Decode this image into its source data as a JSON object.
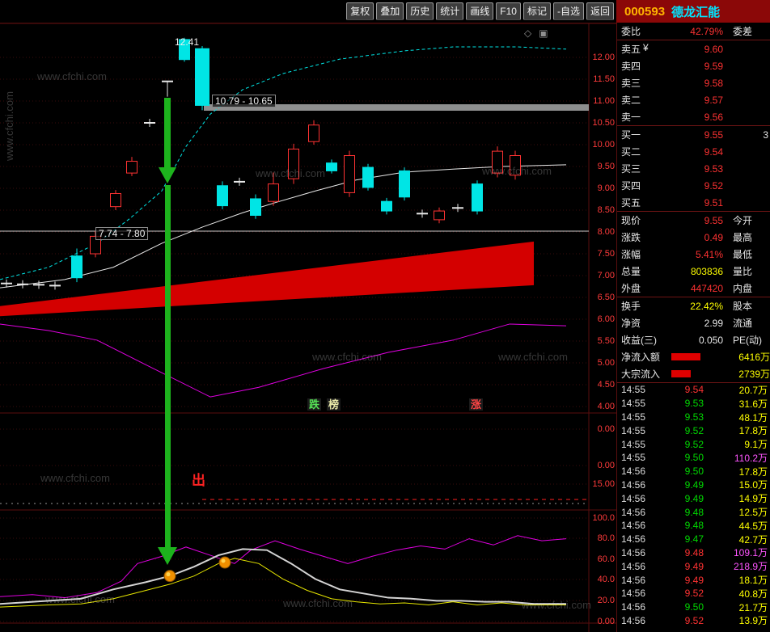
{
  "toolbar": {
    "buttons": [
      "复权",
      "叠加",
      "历史",
      "统计",
      "画线",
      "F10",
      "标记",
      "-自选",
      "返回"
    ]
  },
  "stock": {
    "code": "000593",
    "name": "德龙汇能"
  },
  "watermark": "www.cfchi.com",
  "chart": {
    "icons": [
      "◇",
      "▣"
    ],
    "y_axis_main": [
      "12.00",
      "11.50",
      "11.00",
      "10.50",
      "10.00",
      "9.50",
      "9.00",
      "8.50",
      "8.00",
      "7.50",
      "7.00",
      "6.50",
      "6.00",
      "5.50",
      "5.00",
      "4.50",
      "4.00"
    ],
    "y_axis_mid": [
      "0.00",
      "0.00",
      "15.00"
    ],
    "y_axis_bottom": [
      "100.0",
      "80.0",
      "60.0",
      "40.0",
      "20.0",
      "0.00"
    ],
    "labels": {
      "high_price": "12.41",
      "gap_range": "10.79 - 10.65",
      "low_range": "7.74 - 7.80",
      "exit_mark": "出",
      "tag_fall": "跌",
      "tag_board": "榜",
      "tag_rise": "涨"
    }
  },
  "chart_data": {
    "type": "candlestick",
    "main_ylim": [
      4.0,
      12.5
    ],
    "mid_axis_values": [
      0.0,
      0.0,
      15.0
    ],
    "bottom_ylim": [
      0,
      100
    ],
    "candles": [
      {
        "x": 8,
        "type": "doji",
        "p": 6.82
      },
      {
        "x": 28,
        "type": "doji",
        "p": 6.8
      },
      {
        "x": 48,
        "type": "doji",
        "p": 6.79
      },
      {
        "x": 68,
        "type": "doji",
        "p": 6.77
      },
      {
        "x": 95,
        "type": "candle",
        "dir": "down",
        "o": 7.45,
        "c": 6.95,
        "h": 7.62,
        "l": 6.85
      },
      {
        "x": 118,
        "type": "candle",
        "dir": "up",
        "o": 7.5,
        "c": 7.9,
        "h": 8.02,
        "l": 7.42
      },
      {
        "x": 143,
        "type": "candle",
        "dir": "up",
        "o": 8.58,
        "c": 8.88,
        "h": 8.96,
        "l": 8.5
      },
      {
        "x": 163,
        "type": "candle",
        "dir": "up",
        "o": 9.35,
        "c": 9.62,
        "h": 9.72,
        "l": 9.28
      },
      {
        "x": 185,
        "type": "doji",
        "p": 10.5
      },
      {
        "x": 207,
        "type": "doji",
        "p": 11.45,
        "tail": 11.1
      },
      {
        "x": 228,
        "type": "candle",
        "dir": "down",
        "o": 12.41,
        "c": 11.95,
        "h": 12.45,
        "l": 11.9
      },
      {
        "x": 250,
        "type": "candle",
        "dir": "down",
        "o": 12.2,
        "c": 10.9,
        "h": 12.26,
        "l": 10.79,
        "w": 17
      },
      {
        "x": 275,
        "type": "candle",
        "dir": "down",
        "o": 9.06,
        "c": 8.6,
        "h": 9.16,
        "l": 8.52
      },
      {
        "x": 296,
        "type": "doji",
        "p": 9.15
      },
      {
        "x": 316,
        "type": "candle",
        "dir": "down",
        "o": 8.76,
        "c": 8.38,
        "h": 8.86,
        "l": 8.3
      },
      {
        "x": 338,
        "type": "candle",
        "dir": "up",
        "o": 8.7,
        "c": 9.1,
        "h": 9.36,
        "l": 8.6
      },
      {
        "x": 363,
        "type": "candle",
        "dir": "up",
        "o": 9.22,
        "c": 9.9,
        "h": 10.02,
        "l": 9.1
      },
      {
        "x": 388,
        "type": "candle",
        "dir": "up",
        "o": 10.07,
        "c": 10.45,
        "h": 10.56,
        "l": 10.0
      },
      {
        "x": 410,
        "type": "candle",
        "dir": "down",
        "o": 9.58,
        "c": 9.4,
        "h": 9.66,
        "l": 9.34
      },
      {
        "x": 432,
        "type": "candle",
        "dir": "up",
        "o": 8.9,
        "c": 9.75,
        "h": 9.86,
        "l": 8.8
      },
      {
        "x": 455,
        "type": "candle",
        "dir": "down",
        "o": 9.48,
        "c": 9.02,
        "h": 9.56,
        "l": 8.95
      },
      {
        "x": 478,
        "type": "candle",
        "dir": "down",
        "o": 8.7,
        "c": 8.48,
        "h": 8.78,
        "l": 8.4
      },
      {
        "x": 500,
        "type": "candle",
        "dir": "down",
        "o": 9.4,
        "c": 8.8,
        "h": 9.48,
        "l": 8.72
      },
      {
        "x": 522,
        "type": "doji",
        "p": 8.42
      },
      {
        "x": 543,
        "type": "candle",
        "dir": "up",
        "o": 8.28,
        "c": 8.48,
        "h": 8.56,
        "l": 8.2
      },
      {
        "x": 566,
        "type": "doji",
        "p": 8.55
      },
      {
        "x": 590,
        "type": "candle",
        "dir": "down",
        "o": 9.1,
        "c": 8.48,
        "h": 9.18,
        "l": 8.4
      },
      {
        "x": 615,
        "type": "candle",
        "dir": "up",
        "o": 9.35,
        "c": 9.85,
        "h": 9.96,
        "l": 9.25
      },
      {
        "x": 637,
        "type": "candle",
        "dir": "up",
        "o": 9.3,
        "c": 9.75,
        "h": 9.86,
        "l": 9.2
      }
    ],
    "series": {
      "ma_fast_dashed_cyan": [
        [
          0,
          6.91
        ],
        [
          60,
          7.19
        ],
        [
          120,
          7.74
        ],
        [
          160,
          8.3
        ],
        [
          200,
          8.94
        ],
        [
          230,
          9.96
        ],
        [
          260,
          10.7
        ],
        [
          300,
          11.26
        ],
        [
          350,
          11.63
        ],
        [
          420,
          11.96
        ],
        [
          500,
          12.15
        ],
        [
          560,
          12.24
        ],
        [
          640,
          12.24
        ],
        [
          700,
          12.19
        ]
      ],
      "ma_slow_white": [
        [
          0,
          6.72
        ],
        [
          80,
          6.91
        ],
        [
          140,
          7.19
        ],
        [
          200,
          7.74
        ],
        [
          250,
          8.11
        ],
        [
          300,
          8.44
        ],
        [
          340,
          8.67
        ],
        [
          390,
          8.94
        ],
        [
          440,
          9.19
        ],
        [
          500,
          9.37
        ],
        [
          560,
          9.44
        ],
        [
          620,
          9.5
        ],
        [
          700,
          9.54
        ]
      ],
      "wedge_red": [
        [
          0,
          6.3
        ],
        [
          660,
          7.78
        ],
        [
          660,
          6.78
        ],
        [
          0,
          6.07
        ]
      ],
      "mid_magenta": [
        [
          0,
          5.89
        ],
        [
          60,
          5.74
        ],
        [
          120,
          5.52
        ],
        [
          180,
          4.96
        ],
        [
          260,
          4.22
        ],
        [
          320,
          4.44
        ],
        [
          400,
          4.87
        ],
        [
          480,
          5.24
        ],
        [
          560,
          5.52
        ],
        [
          630,
          5.89
        ],
        [
          700,
          5.85
        ]
      ],
      "bottom_magenta": [
        [
          0,
          24
        ],
        [
          40,
          26
        ],
        [
          80,
          23
        ],
        [
          120,
          28
        ],
        [
          150,
          39
        ],
        [
          170,
          56
        ],
        [
          200,
          63
        ],
        [
          230,
          72
        ],
        [
          260,
          64
        ],
        [
          290,
          56
        ],
        [
          310,
          69
        ],
        [
          340,
          78
        ],
        [
          370,
          70
        ],
        [
          400,
          63
        ],
        [
          430,
          56
        ],
        [
          460,
          63
        ],
        [
          490,
          69
        ],
        [
          520,
          73
        ],
        [
          550,
          70
        ],
        [
          580,
          80
        ],
        [
          610,
          74
        ],
        [
          640,
          83
        ],
        [
          670,
          78
        ],
        [
          700,
          80
        ]
      ],
      "bottom_gray": [
        [
          0,
          17
        ],
        [
          60,
          20
        ],
        [
          100,
          22
        ],
        [
          140,
          31
        ],
        [
          180,
          38
        ],
        [
          210,
          44
        ],
        [
          240,
          53
        ],
        [
          270,
          64
        ],
        [
          300,
          70
        ],
        [
          330,
          69
        ],
        [
          360,
          56
        ],
        [
          390,
          41
        ],
        [
          420,
          31
        ],
        [
          450,
          27
        ],
        [
          480,
          23
        ],
        [
          510,
          22
        ],
        [
          540,
          20
        ],
        [
          570,
          20
        ],
        [
          600,
          19
        ],
        [
          630,
          19
        ],
        [
          660,
          17
        ],
        [
          700,
          17
        ]
      ],
      "bottom_yellow": [
        [
          0,
          14
        ],
        [
          60,
          16
        ],
        [
          100,
          17
        ],
        [
          140,
          22
        ],
        [
          180,
          30
        ],
        [
          210,
          36
        ],
        [
          240,
          44
        ],
        [
          270,
          56
        ],
        [
          290,
          61
        ],
        [
          320,
          56
        ],
        [
          350,
          41
        ],
        [
          380,
          30
        ],
        [
          410,
          22
        ],
        [
          440,
          19
        ],
        [
          470,
          17
        ],
        [
          500,
          18
        ],
        [
          530,
          16
        ],
        [
          560,
          19
        ],
        [
          590,
          16
        ],
        [
          620,
          18
        ],
        [
          650,
          16
        ],
        [
          700,
          16
        ]
      ],
      "bottom_dots": [
        [
          210,
          44
        ],
        [
          278,
          57
        ]
      ]
    }
  },
  "panel": {
    "weibi": {
      "label": "委比",
      "value": "42.79%",
      "label2": "委差"
    },
    "asks": [
      {
        "label": "卖五",
        "icon": "¥",
        "price": "9.60"
      },
      {
        "label": "卖四",
        "price": "9.59"
      },
      {
        "label": "卖三",
        "price": "9.58"
      },
      {
        "label": "卖二",
        "price": "9.57"
      },
      {
        "label": "卖一",
        "price": "9.56"
      }
    ],
    "bids": [
      {
        "label": "买一",
        "price": "9.55",
        "vol": "3"
      },
      {
        "label": "买二",
        "price": "9.54"
      },
      {
        "label": "买三",
        "price": "9.53"
      },
      {
        "label": "买四",
        "price": "9.52"
      },
      {
        "label": "买五",
        "price": "9.51"
      }
    ],
    "info_a": [
      {
        "label": "现价",
        "value": "9.55",
        "color": "r",
        "label2": "今开"
      },
      {
        "label": "涨跌",
        "value": "0.49",
        "color": "r",
        "label2": "最高"
      },
      {
        "label": "涨幅",
        "value": "5.41%",
        "color": "r",
        "label2": "最低"
      },
      {
        "label": "总量",
        "value": "803836",
        "color": "y",
        "label2": "量比"
      },
      {
        "label": "外盘",
        "value": "447420",
        "color": "r",
        "label2": "内盘"
      }
    ],
    "info_b": [
      {
        "label": "换手",
        "value": "22.42%",
        "color": "y",
        "label2": "股本"
      },
      {
        "label": "净资",
        "value": "2.99",
        "color": "w",
        "label2": "流通"
      },
      {
        "label": "收益(三)",
        "value": "0.050",
        "color": "w",
        "label2": "PE(动)"
      }
    ],
    "flows": [
      {
        "label": "净流入额",
        "value": "6416万",
        "bar": 36
      },
      {
        "label": "大宗流入",
        "value": "2739万",
        "bar": 24
      }
    ],
    "ticks": [
      {
        "time": "14:55",
        "price": "9.54",
        "pc": "r",
        "vol": "20.7万",
        "vc": "y"
      },
      {
        "time": "14:55",
        "price": "9.53",
        "pc": "g",
        "vol": "31.6万",
        "vc": "y"
      },
      {
        "time": "14:55",
        "price": "9.53",
        "pc": "g",
        "vol": "48.1万",
        "vc": "y"
      },
      {
        "time": "14:55",
        "price": "9.52",
        "pc": "g",
        "vol": "17.8万",
        "vc": "y"
      },
      {
        "time": "14:55",
        "price": "9.52",
        "pc": "g",
        "vol": "9.1万",
        "vc": "y"
      },
      {
        "time": "14:55",
        "price": "9.50",
        "pc": "g",
        "vol": "110.2万",
        "vc": "m"
      },
      {
        "time": "14:56",
        "price": "9.50",
        "pc": "g",
        "vol": "17.8万",
        "vc": "y"
      },
      {
        "time": "14:56",
        "price": "9.49",
        "pc": "g",
        "vol": "15.0万",
        "vc": "y"
      },
      {
        "time": "14:56",
        "price": "9.49",
        "pc": "g",
        "vol": "14.9万",
        "vc": "y"
      },
      {
        "time": "14:56",
        "price": "9.48",
        "pc": "g",
        "vol": "12.5万",
        "vc": "y"
      },
      {
        "time": "14:56",
        "price": "9.48",
        "pc": "g",
        "vol": "44.5万",
        "vc": "y"
      },
      {
        "time": "14:56",
        "price": "9.47",
        "pc": "g",
        "vol": "42.7万",
        "vc": "y"
      },
      {
        "time": "14:56",
        "price": "9.48",
        "pc": "r",
        "vol": "109.1万",
        "vc": "m"
      },
      {
        "time": "14:56",
        "price": "9.49",
        "pc": "r",
        "vol": "218.9万",
        "vc": "m"
      },
      {
        "time": "14:56",
        "price": "9.49",
        "pc": "r",
        "vol": "18.1万",
        "vc": "y"
      },
      {
        "time": "14:56",
        "price": "9.52",
        "pc": "r",
        "vol": "40.8万",
        "vc": "y"
      },
      {
        "time": "14:56",
        "price": "9.50",
        "pc": "g",
        "vol": "21.7万",
        "vc": "y"
      },
      {
        "time": "14:56",
        "price": "9.52",
        "pc": "r",
        "vol": "13.9万",
        "vc": "y"
      }
    ]
  }
}
